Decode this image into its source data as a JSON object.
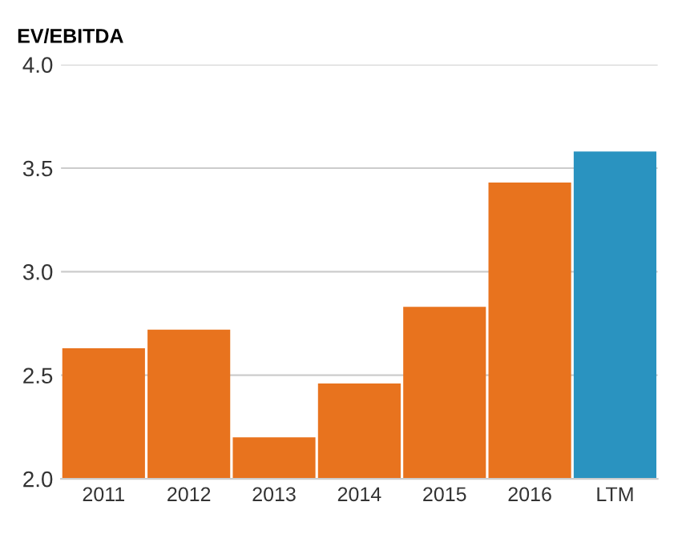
{
  "chart_data": {
    "type": "bar",
    "title": "EV/EBITDA",
    "categories": [
      "2011",
      "2012",
      "2013",
      "2014",
      "2015",
      "2016",
      "LTM"
    ],
    "values": [
      2.63,
      2.72,
      2.2,
      2.46,
      2.83,
      3.43,
      3.58
    ],
    "colors": [
      "#e8731e",
      "#e8731e",
      "#e8731e",
      "#e8731e",
      "#e8731e",
      "#e8731e",
      "#2a93c0"
    ],
    "ylim": [
      2.0,
      4.0
    ],
    "yticks": [
      {
        "value": 2.0,
        "label": "2.0"
      },
      {
        "value": 2.5,
        "label": "2.5"
      },
      {
        "value": 3.0,
        "label": "3.0"
      },
      {
        "value": 3.5,
        "label": "3.5"
      },
      {
        "value": 4.0,
        "label": "4.0"
      }
    ],
    "grid": "y"
  }
}
